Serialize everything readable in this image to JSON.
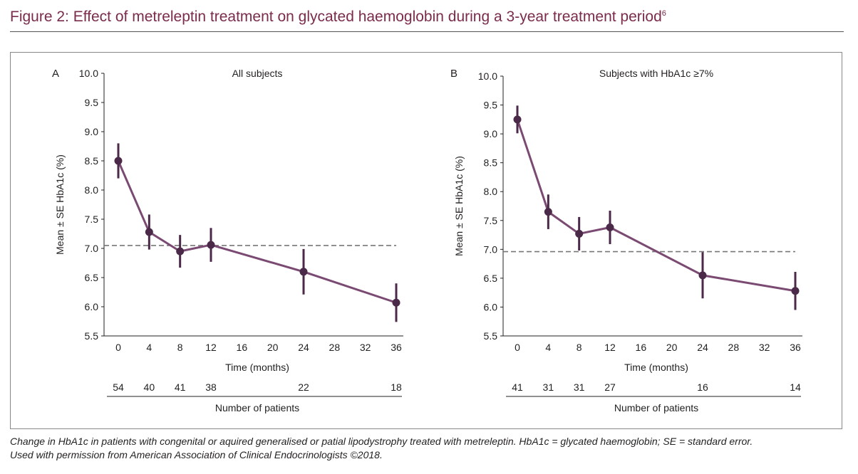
{
  "figure": {
    "title": "Figure 2: Effect of metreleptin treatment on glycated haemoglobin during a 3-year treatment period",
    "title_ref": "6",
    "caption_line1": "Change in HbA1c in patients with congenital or aquired generalised or patial lipodystrophy treated with metreleptin. HbA1c = glycated haemoglobin; SE = standard error.",
    "caption_line2": "Used with permission from American Association of Clinical Endocrinologists ©2018."
  },
  "colors": {
    "title": "#7b2b4b",
    "line": "#7b4a72",
    "marker": "#4a2a48",
    "reference": "#777777"
  },
  "chart_data": [
    {
      "type": "line",
      "panel_label": "A",
      "title": "All subjects",
      "xlabel": "Time (months)",
      "ylabel": "Mean ± SE HbA1c (%)",
      "x_ticks": [
        0,
        4,
        8,
        12,
        16,
        20,
        24,
        28,
        32,
        36
      ],
      "y_ticks": [
        "5.5",
        "6.0",
        "6.5",
        "7.0",
        "7.5",
        "8.0",
        "8.5",
        "9.0",
        "9.5",
        "10.0"
      ],
      "xlim": [
        0,
        36
      ],
      "ylim": [
        5.5,
        10.0
      ],
      "reference_line_y": 7.05,
      "series": [
        {
          "x": [
            0,
            4,
            8,
            12,
            24,
            36
          ],
          "y": [
            8.5,
            7.28,
            6.95,
            7.06,
            6.6,
            6.07
          ],
          "se": [
            0.3,
            0.3,
            0.28,
            0.29,
            0.39,
            0.33
          ]
        }
      ],
      "patients_label": "Number of patients",
      "patients": [
        {
          "x": 0,
          "n": "54"
        },
        {
          "x": 4,
          "n": "40"
        },
        {
          "x": 8,
          "n": "41"
        },
        {
          "x": 12,
          "n": "38"
        },
        {
          "x": 24,
          "n": "22"
        },
        {
          "x": 36,
          "n": "18"
        }
      ]
    },
    {
      "type": "line",
      "panel_label": "B",
      "title": "Subjects with HbA1c ≥7%",
      "xlabel": "Time (months)",
      "ylabel": "Mean ± SE HbA1c (%)",
      "x_ticks": [
        0,
        4,
        8,
        12,
        16,
        20,
        24,
        28,
        32,
        36
      ],
      "y_ticks": [
        "5.5",
        "6.0",
        "6.5",
        "7.0",
        "7.5",
        "8.0",
        "8.5",
        "9.0",
        "9.5",
        "10.0"
      ],
      "xlim": [
        0,
        36
      ],
      "ylim": [
        5.5,
        10.0
      ],
      "reference_line_y": 6.96,
      "series": [
        {
          "x": [
            0,
            4,
            8,
            12,
            24,
            36
          ],
          "y": [
            9.25,
            7.65,
            7.27,
            7.38,
            6.55,
            6.28
          ],
          "se": [
            0.24,
            0.3,
            0.29,
            0.29,
            0.4,
            0.33
          ]
        }
      ],
      "patients_label": "Number of patients",
      "patients": [
        {
          "x": 0,
          "n": "41"
        },
        {
          "x": 4,
          "n": "31"
        },
        {
          "x": 8,
          "n": "31"
        },
        {
          "x": 12,
          "n": "27"
        },
        {
          "x": 24,
          "n": "16"
        },
        {
          "x": 36,
          "n": "14"
        }
      ]
    }
  ]
}
